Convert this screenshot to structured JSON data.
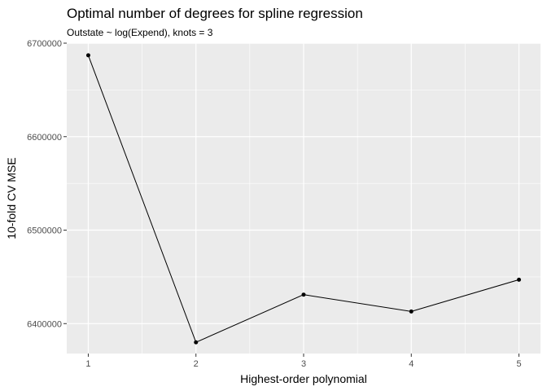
{
  "chart_data": {
    "type": "line",
    "title": "Optimal number of degrees for spline regression",
    "subtitle": "Outstate ~ log(Expend), knots = 3",
    "xlabel": "Highest-order polynomial",
    "ylabel": "10-fold CV MSE",
    "x": [
      1,
      2,
      3,
      4,
      5
    ],
    "y": [
      6687000,
      6380000,
      6431000,
      6413000,
      6447000
    ],
    "xlim": [
      0.8,
      5.2
    ],
    "ylim": [
      6368000,
      6700000
    ],
    "xticks": [
      1,
      2,
      3,
      4,
      5
    ],
    "yticks": [
      6400000,
      6500000,
      6600000,
      6700000
    ],
    "grid": true,
    "panel_color": "#ebebeb",
    "grid_color": "#ffffff",
    "line_color": "#000000",
    "point_color": "#000000"
  }
}
